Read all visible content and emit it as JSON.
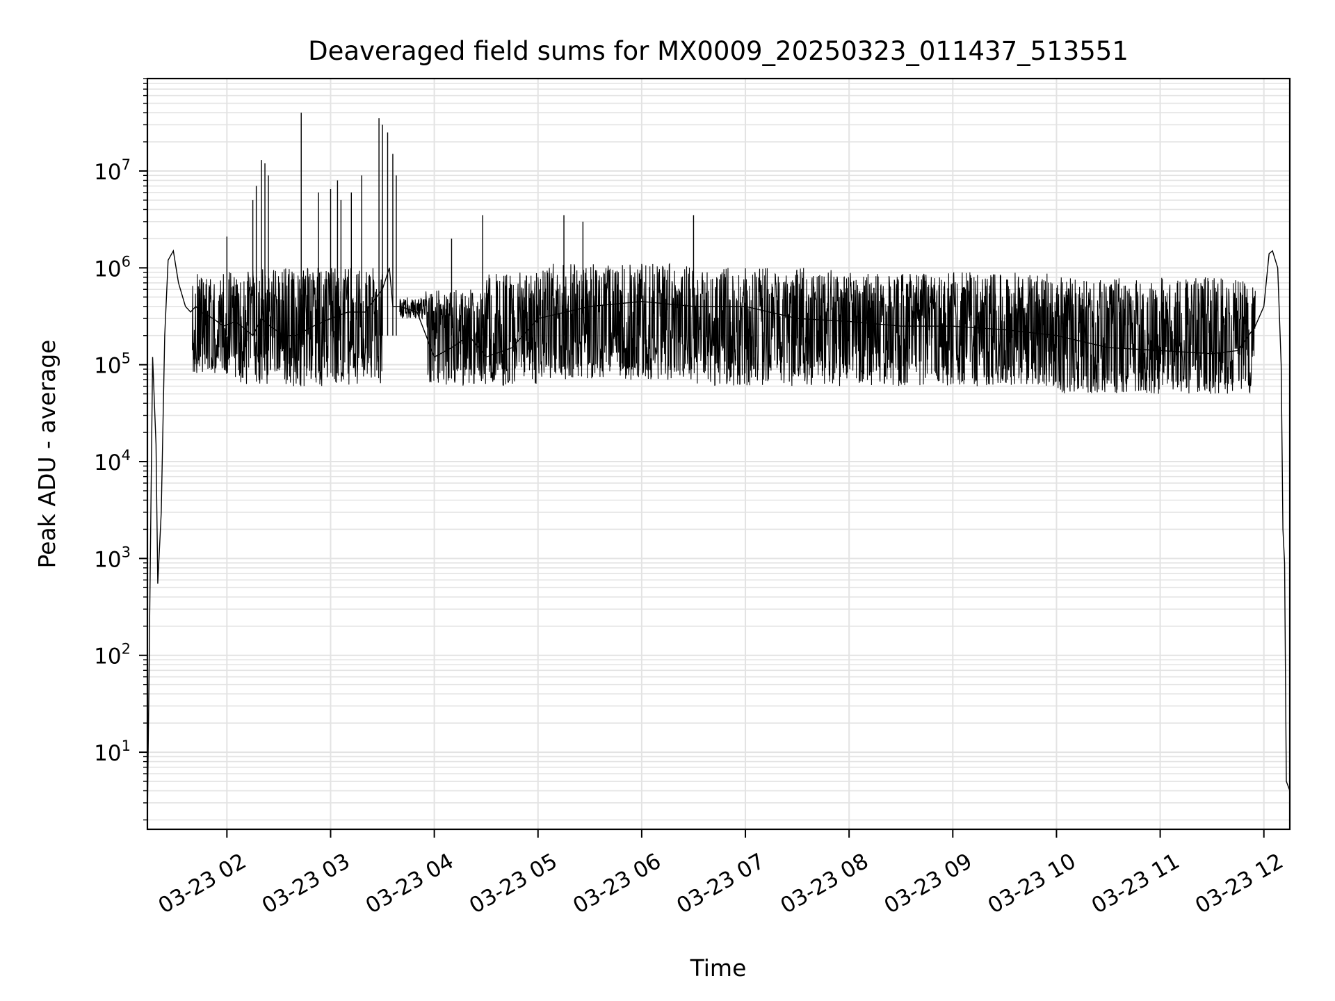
{
  "chart_data": {
    "type": "line",
    "title": "Deaveraged field sums for MX0009_20250323_011437_513551",
    "xlabel": "Time",
    "ylabel": "Peak ADU - average",
    "yscale": "log",
    "grid": "both",
    "ylim": [
      1.6,
      90000000
    ],
    "xlim": [
      "2025-03-23 01:14",
      "2025-03-23 12:15"
    ],
    "x_ticks": [
      "03-23 02",
      "03-23 03",
      "03-23 04",
      "03-23 05",
      "03-23 06",
      "03-23 07",
      "03-23 08",
      "03-23 09",
      "03-23 10",
      "03-23 11",
      "03-23 12"
    ],
    "y_ticks": [
      {
        "base": "10",
        "exp": "1"
      },
      {
        "base": "10",
        "exp": "2"
      },
      {
        "base": "10",
        "exp": "3"
      },
      {
        "base": "10",
        "exp": "4"
      },
      {
        "base": "10",
        "exp": "5"
      },
      {
        "base": "10",
        "exp": "6"
      },
      {
        "base": "10",
        "exp": "7"
      }
    ],
    "line_color": "#000000",
    "series": [
      {
        "x": [
          "2025-03-23 01:14",
          "2025-03-23 01:17",
          "2025-03-23 01:19",
          "2025-03-23 01:20",
          "2025-03-23 01:22",
          "2025-03-23 01:24",
          "2025-03-23 01:26",
          "2025-03-23 01:29",
          "2025-03-23 01:32",
          "2025-03-23 01:36",
          "2025-03-23 01:39",
          "2025-03-23 01:42",
          "2025-03-23 01:45",
          "2025-03-23 01:52",
          "2025-03-23 01:58",
          "2025-03-23 02:05",
          "2025-03-23 02:15",
          "2025-03-23 02:20",
          "2025-03-23 02:25",
          "2025-03-23 02:33",
          "2025-03-23 02:40",
          "2025-03-23 02:50",
          "2025-03-23 03:00",
          "2025-03-23 03:10",
          "2025-03-23 03:20",
          "2025-03-23 03:30",
          "2025-03-23 03:34",
          "2025-03-23 03:36",
          "2025-03-23 03:40",
          "2025-03-23 03:50",
          "2025-03-23 04:00",
          "2025-03-23 04:10",
          "2025-03-23 04:20",
          "2025-03-23 04:30",
          "2025-03-23 04:45",
          "2025-03-23 05:00",
          "2025-03-23 05:30",
          "2025-03-23 06:00",
          "2025-03-23 06:30",
          "2025-03-23 07:00",
          "2025-03-23 07:30",
          "2025-03-23 08:00",
          "2025-03-23 08:30",
          "2025-03-23 09:00",
          "2025-03-23 09:30",
          "2025-03-23 10:00",
          "2025-03-23 10:30",
          "2025-03-23 11:00",
          "2025-03-23 11:30",
          "2025-03-23 11:45",
          "2025-03-23 11:55",
          "2025-03-23 12:00",
          "2025-03-23 12:03",
          "2025-03-23 12:05",
          "2025-03-23 12:08",
          "2025-03-23 12:10",
          "2025-03-23 12:11",
          "2025-03-23 12:12",
          "2025-03-23 12:13",
          "2025-03-23 12:15"
        ],
        "y": [
          2,
          120000,
          15000,
          550,
          3000,
          200000,
          1200000,
          1500000,
          700000,
          400000,
          350000,
          400000,
          350000,
          300000,
          250000,
          280000,
          200000,
          300000,
          250000,
          200000,
          200000,
          250000,
          300000,
          350000,
          350000,
          600000,
          1000000,
          400000,
          400000,
          350000,
          120000,
          150000,
          200000,
          120000,
          150000,
          300000,
          400000,
          450000,
          400000,
          400000,
          300000,
          280000,
          250000,
          250000,
          230000,
          200000,
          150000,
          140000,
          130000,
          140000,
          250000,
          400000,
          1400000,
          1500000,
          1000000,
          100000,
          2000,
          900,
          5,
          4
        ]
      }
    ],
    "noise_band": [
      {
        "from": "2025-03-23 01:40",
        "to": "2025-03-23 02:00",
        "low": 80000,
        "high": 900000
      },
      {
        "from": "2025-03-23 02:00",
        "to": "2025-03-23 03:30",
        "low": 60000,
        "high": 1000000
      },
      {
        "from": "2025-03-23 03:40",
        "to": "2025-03-23 03:55",
        "low": 300000,
        "high": 500000
      },
      {
        "from": "2025-03-23 03:55",
        "to": "2025-03-23 04:30",
        "low": 60000,
        "high": 600000
      },
      {
        "from": "2025-03-23 04:30",
        "to": "2025-03-23 05:00",
        "low": 60000,
        "high": 900000
      },
      {
        "from": "2025-03-23 05:00",
        "to": "2025-03-23 06:30",
        "low": 70000,
        "high": 1100000
      },
      {
        "from": "2025-03-23 06:30",
        "to": "2025-03-23 08:00",
        "low": 60000,
        "high": 1000000
      },
      {
        "from": "2025-03-23 08:00",
        "to": "2025-03-23 10:00",
        "low": 60000,
        "high": 900000
      },
      {
        "from": "2025-03-23 10:00",
        "to": "2025-03-23 11:55",
        "low": 50000,
        "high": 800000
      }
    ],
    "spikes": [
      {
        "x": "2025-03-23 02:00",
        "y": 2100000
      },
      {
        "x": "2025-03-23 02:15",
        "y": 5000000
      },
      {
        "x": "2025-03-23 02:17",
        "y": 7000000
      },
      {
        "x": "2025-03-23 02:20",
        "y": 13000000
      },
      {
        "x": "2025-03-23 02:22",
        "y": 12000000
      },
      {
        "x": "2025-03-23 02:24",
        "y": 9000000
      },
      {
        "x": "2025-03-23 02:43",
        "y": 40000000
      },
      {
        "x": "2025-03-23 02:53",
        "y": 6000000
      },
      {
        "x": "2025-03-23 03:00",
        "y": 6500000
      },
      {
        "x": "2025-03-23 03:04",
        "y": 8000000
      },
      {
        "x": "2025-03-23 03:06",
        "y": 5000000
      },
      {
        "x": "2025-03-23 03:12",
        "y": 6000000
      },
      {
        "x": "2025-03-23 03:18",
        "y": 9000000
      },
      {
        "x": "2025-03-23 03:28",
        "y": 35000000
      },
      {
        "x": "2025-03-23 03:30",
        "y": 30000000
      },
      {
        "x": "2025-03-23 03:33",
        "y": 25000000
      },
      {
        "x": "2025-03-23 03:36",
        "y": 15000000
      },
      {
        "x": "2025-03-23 03:38",
        "y": 9000000
      },
      {
        "x": "2025-03-23 04:10",
        "y": 2000000
      },
      {
        "x": "2025-03-23 04:28",
        "y": 3500000
      },
      {
        "x": "2025-03-23 05:15",
        "y": 3500000
      },
      {
        "x": "2025-03-23 05:26",
        "y": 3000000
      },
      {
        "x": "2025-03-23 06:30",
        "y": 3500000
      }
    ]
  }
}
